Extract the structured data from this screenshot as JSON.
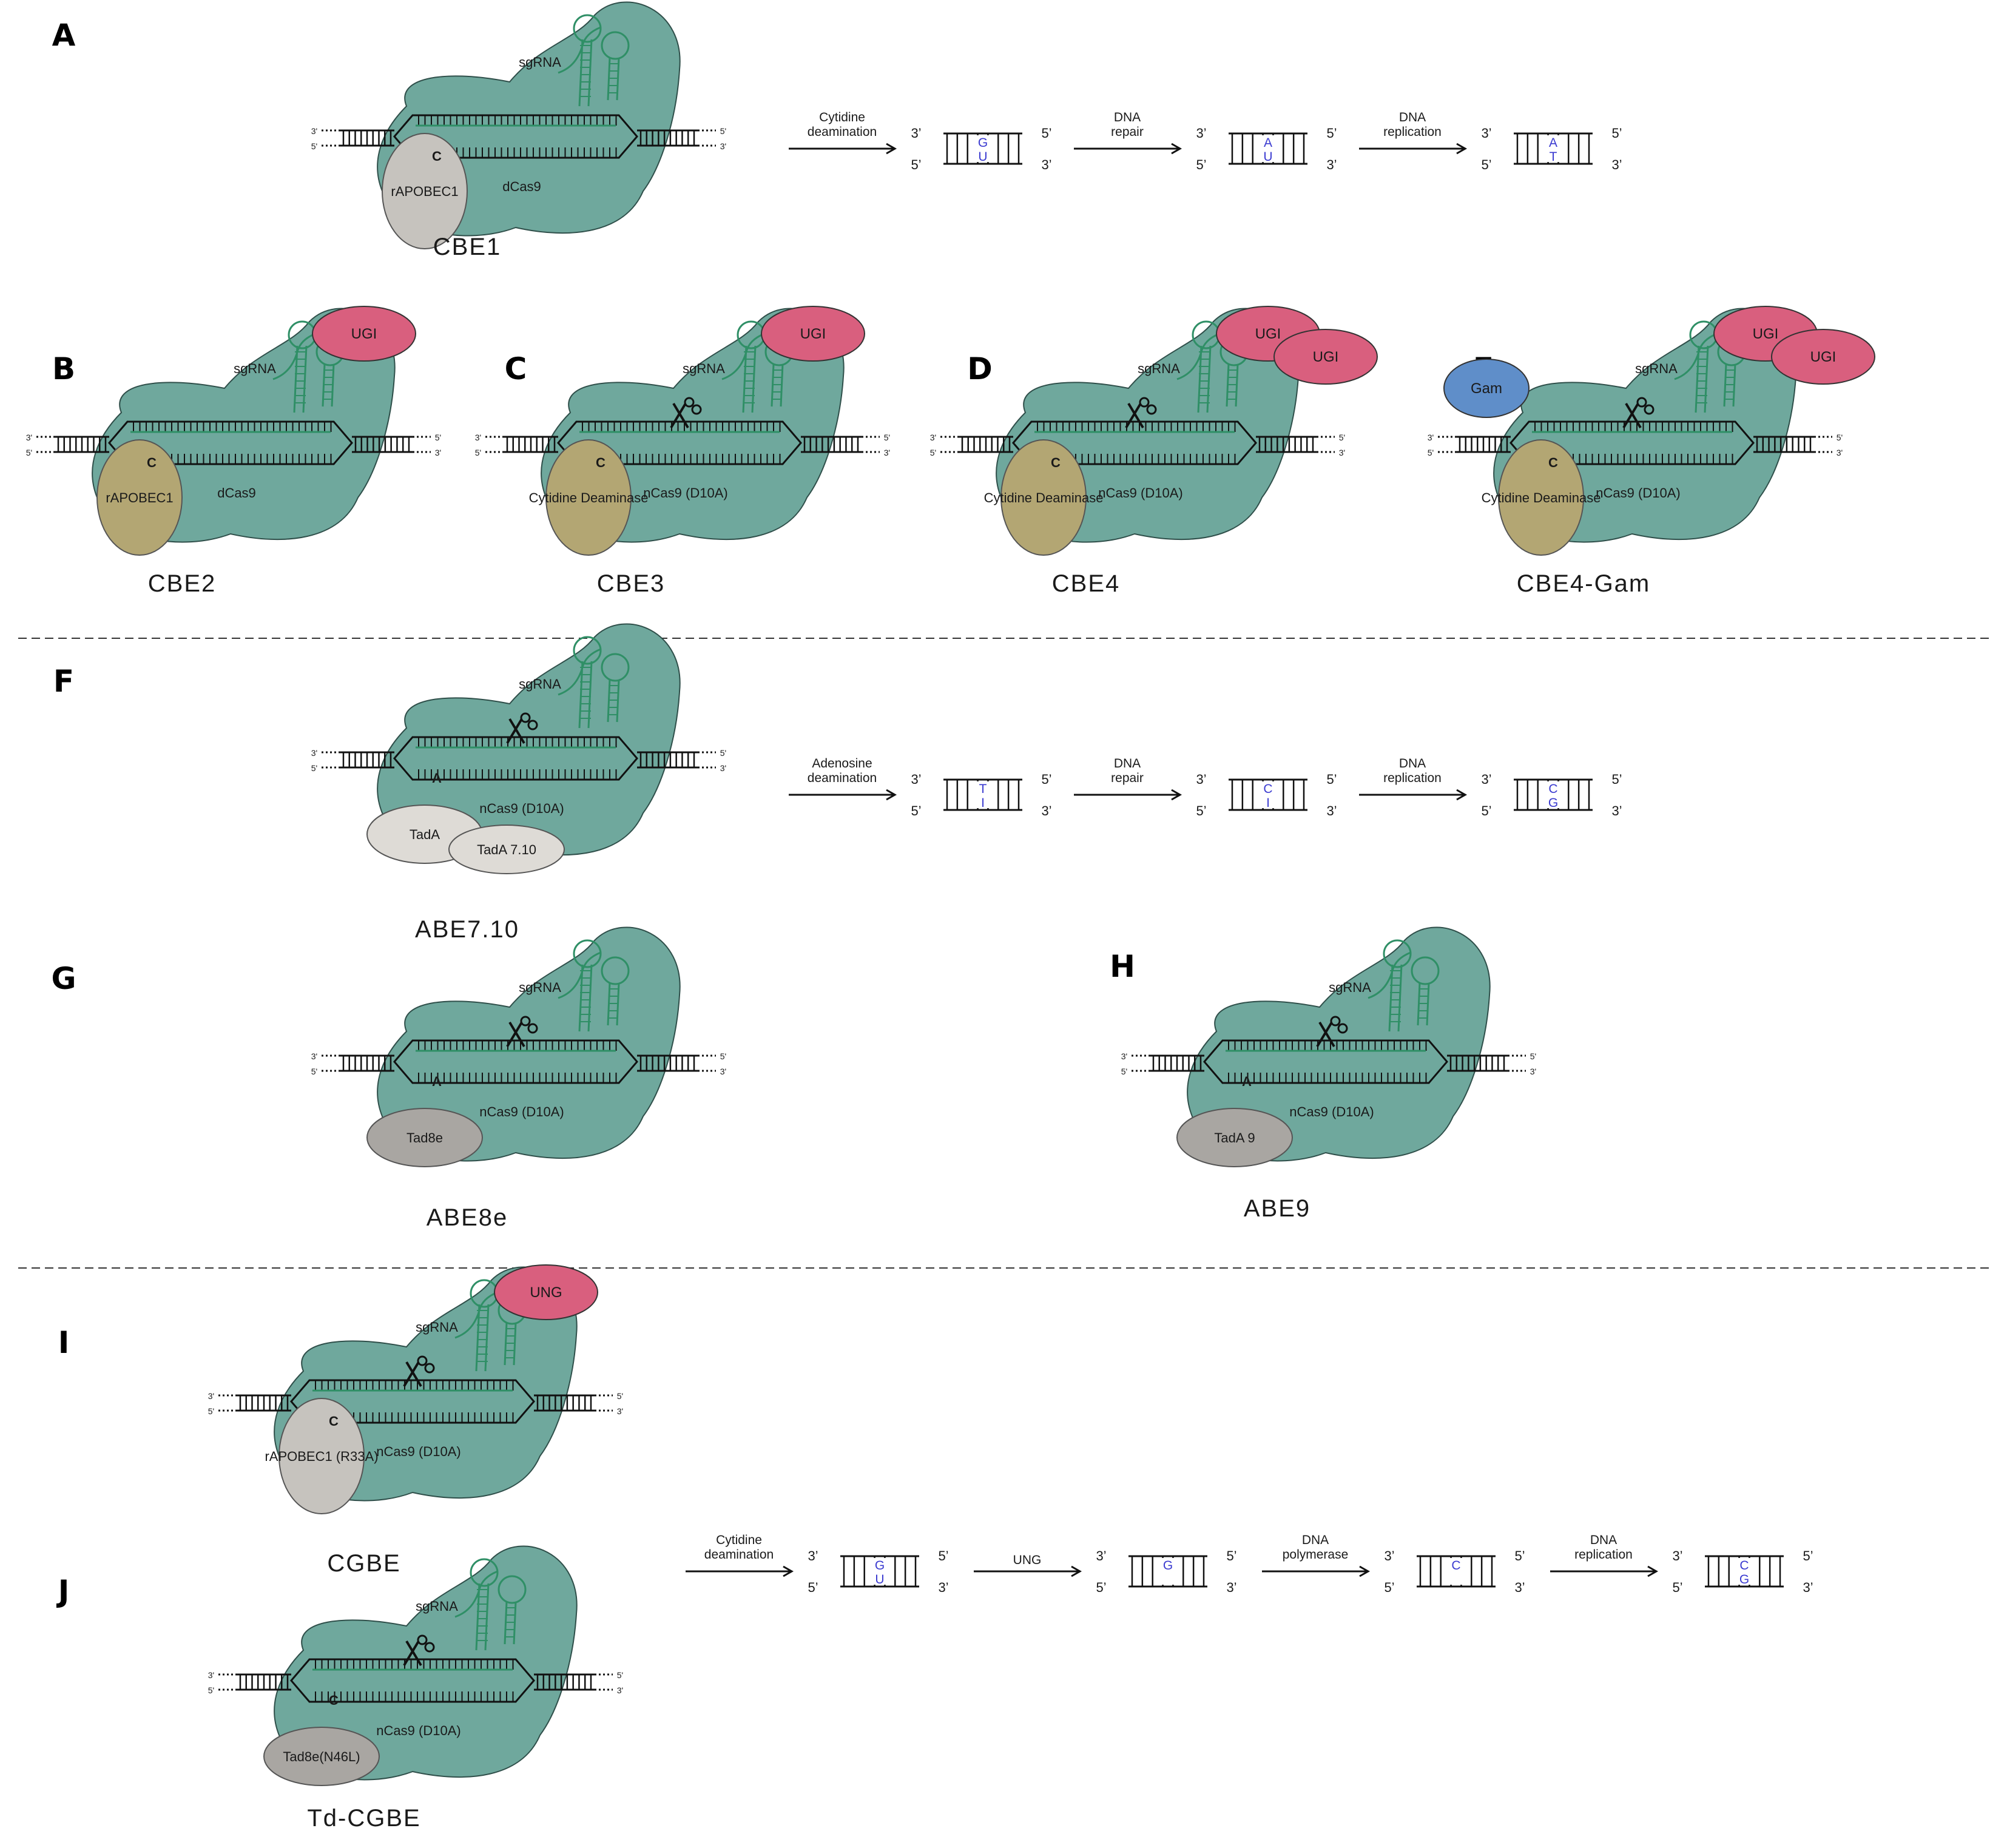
{
  "palette": {
    "cas9": "#6fa89d",
    "cas9_stroke": "#2f4f4a",
    "ugi": "#d95f7e",
    "gam": "#5f8ec9",
    "rapobec_gray": "#c6c3be",
    "deaminase_olive": "#b3a673",
    "tada_light": "#dedbd6",
    "tad_dark": "#a9a6a2",
    "rna_green": "#2f8f66",
    "edit_blue": "#3a3ad0"
  },
  "common": {
    "sgrna": "sgRNA",
    "three_prime": "3'",
    "five_prime": "5'",
    "three_prime_curly": "3’",
    "five_prime_curly": "5’",
    "cut_icon": "scissors-icon"
  },
  "panels": [
    {
      "id": "A",
      "letter": "A",
      "editor": "CBE1",
      "cas": "dCas9",
      "deaminase": "rAPOBEC1",
      "base": "C",
      "extras": [],
      "nick": false
    },
    {
      "id": "B",
      "letter": "B",
      "editor": "CBE2",
      "cas": "dCas9",
      "deaminase": "rAPOBEC1",
      "base": "C",
      "extras": [
        "UGI"
      ],
      "nick": false
    },
    {
      "id": "C",
      "letter": "C",
      "editor": "CBE3",
      "cas": "nCas9 (D10A)",
      "deaminase": "Cytidine Deaminase",
      "base": "C",
      "extras": [
        "UGI"
      ],
      "nick": true
    },
    {
      "id": "D",
      "letter": "D",
      "editor": "CBE4",
      "cas": "nCas9 (D10A)",
      "deaminase": "Cytidine Deaminase",
      "base": "C",
      "extras": [
        "UGI",
        "UGI"
      ],
      "nick": true
    },
    {
      "id": "E",
      "letter": "E",
      "editor": "CBE4-Gam",
      "cas": "nCas9 (D10A)",
      "deaminase": "Cytidine Deaminase",
      "base": "C",
      "extras": [
        "UGI",
        "UGI",
        "Gam"
      ],
      "nick": true
    },
    {
      "id": "F",
      "letter": "F",
      "editor": "ABE7.10",
      "cas": "nCas9 (D10A)",
      "deaminase": "TadA",
      "deaminase2": "TadA 7.10",
      "base": "A",
      "extras": [],
      "nick": true
    },
    {
      "id": "G",
      "letter": "G",
      "editor": "ABE8e",
      "cas": "nCas9 (D10A)",
      "deaminase": "Tad8e",
      "base": "A",
      "extras": [],
      "nick": true
    },
    {
      "id": "H",
      "letter": "H",
      "editor": "ABE9",
      "cas": "nCas9 (D10A)",
      "deaminase": "TadA 9",
      "base": "A",
      "extras": [],
      "nick": true
    },
    {
      "id": "I",
      "letter": "I",
      "editor": "CGBE",
      "cas": "nCas9 (D10A)",
      "deaminase": "rAPOBEC1 (R33A)",
      "base": "C",
      "extras": [
        "UNG"
      ],
      "nick": true
    },
    {
      "id": "J",
      "letter": "J",
      "editor": "Td-CGBE",
      "cas": "nCas9 (D10A)",
      "deaminase": "Tad8e(N46L)",
      "base": "C",
      "extras": [],
      "nick": true
    }
  ],
  "pathways": [
    {
      "id": "A",
      "steps": [
        {
          "arrow": [
            "Cytidine",
            "deamination"
          ],
          "bases": [
            "G",
            "U"
          ]
        },
        {
          "arrow": [
            "DNA",
            "repair"
          ],
          "bases": [
            "A",
            "U"
          ]
        },
        {
          "arrow": [
            "DNA",
            "replication"
          ],
          "bases": [
            "A",
            "T"
          ]
        }
      ]
    },
    {
      "id": "F",
      "steps": [
        {
          "arrow": [
            "Adenosine",
            "deamination"
          ],
          "bases": [
            "T",
            "I"
          ]
        },
        {
          "arrow": [
            "DNA",
            "repair"
          ],
          "bases": [
            "C",
            "I"
          ]
        },
        {
          "arrow": [
            "DNA",
            "replication"
          ],
          "bases": [
            "C",
            "G"
          ]
        }
      ]
    },
    {
      "id": "IJ",
      "steps": [
        {
          "arrow": [
            "Cytidine",
            "deamination"
          ],
          "bases": [
            "G",
            "U"
          ]
        },
        {
          "arrow": [
            "UNG"
          ],
          "bases": [
            "G",
            ""
          ]
        },
        {
          "arrow": [
            "DNA",
            "polymerase"
          ],
          "bases": [
            "C",
            ""
          ]
        },
        {
          "arrow": [
            "DNA",
            "replication"
          ],
          "bases": [
            "C",
            "G"
          ]
        }
      ]
    }
  ]
}
